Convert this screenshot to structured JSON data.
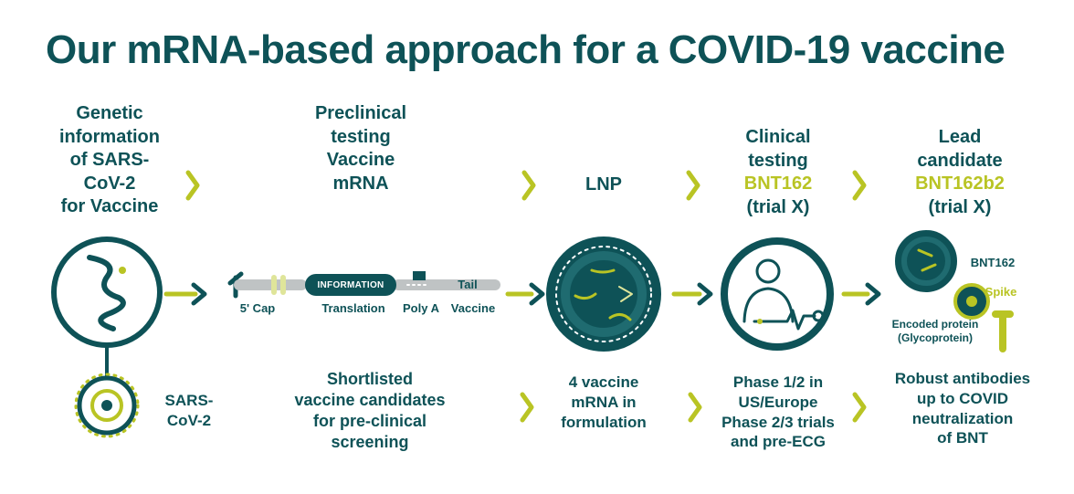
{
  "title": "Our mRNA-based approach for a COVID-19 vaccine",
  "stage1": {
    "heading": [
      "Genetic",
      "information",
      "of SARS-",
      "CoV-2",
      "for Vaccine"
    ],
    "bottom": [
      "SARS-",
      "CoV-2"
    ]
  },
  "stage2": {
    "heading": [
      "Preclinical",
      "testing",
      "Vaccine",
      "mRNA"
    ],
    "diagram_labels": [
      "5' Cap",
      "INFORMATION",
      "Translation",
      "Poly A",
      "Tail",
      "Vaccine"
    ],
    "bottom": [
      "Shortlisted",
      "vaccine candidates",
      "for pre-clinical",
      "screening"
    ]
  },
  "stage3": {
    "heading": [
      "LNP"
    ],
    "bottom": [
      "4 vaccine",
      "mRNA in",
      "formulation"
    ]
  },
  "stage4": {
    "heading": [
      "Clinical",
      "testing",
      "BNT162",
      "(trial X)"
    ],
    "bottom": [
      "Phase 1/2 in",
      "US/Europe",
      "Phase 2/3 trials",
      "and pre-ECG"
    ]
  },
  "stage5": {
    "heading": [
      "Lead",
      "candidate",
      "BNT162b2",
      "(trial X)"
    ],
    "figure_labels": [
      "BNT162",
      "Spike",
      "Encoded protein",
      "(Glycoprotein)"
    ],
    "bottom": [
      "Robust antibodies",
      "up to COVID",
      "neutralization",
      "of BNT"
    ]
  },
  "colors": {
    "teal": "#0e5257",
    "lime": "#b9c424",
    "lightLime": "#dfe59a",
    "grey": "#bfc3c4"
  }
}
